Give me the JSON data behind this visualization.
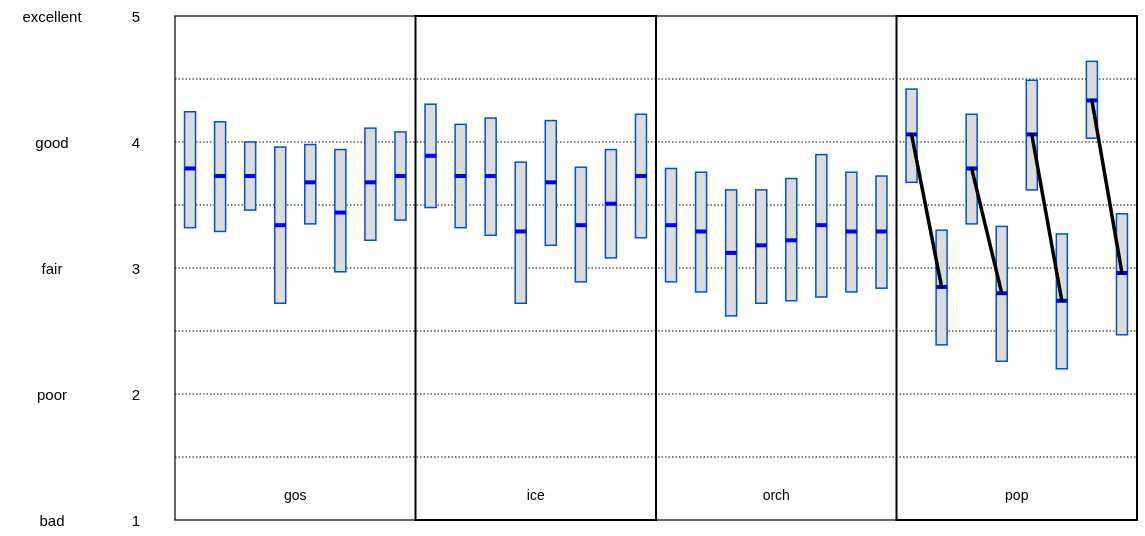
{
  "chart_data": {
    "type": "box",
    "categories": [
      null,
      null,
      null,
      null,
      null,
      null,
      null,
      null,
      null,
      null,
      null,
      null,
      null,
      null,
      null,
      null,
      null,
      null,
      null,
      null,
      null,
      null,
      null,
      null,
      null,
      null,
      null,
      null,
      null,
      null,
      null,
      null
    ],
    "ylim": [
      1,
      5
    ],
    "yticks": [
      1,
      {
        "value": 1.5,
        "label": null
      },
      2,
      {
        "value": 2.5,
        "label": null
      },
      3,
      {
        "value": 3.5,
        "label": null
      },
      4,
      {
        "value": 4.5,
        "label": null
      },
      5
    ],
    "grid": "y",
    "annotations": [
      "gos",
      "ice",
      "orch",
      "pop",
      "excellent",
      "good",
      "fair",
      "poor",
      "bad"
    ],
    "series": [
      {
        "color": "#dcdcdc",
        "boxes": [
          {
            "low": 3.32,
            "q1": 3.32,
            "median": 3.79,
            "q3": 4.24,
            "high": 4.24
          },
          {
            "low": 3.29,
            "q1": 3.29,
            "median": 3.73,
            "q3": 4.16,
            "high": 4.16
          },
          {
            "low": 3.46,
            "q1": 3.46,
            "median": 3.73,
            "q3": 4.0,
            "high": 4.0
          },
          {
            "low": 2.72,
            "q1": 2.72,
            "median": 3.34,
            "q3": 3.96,
            "high": 3.96
          },
          {
            "low": 3.35,
            "q1": 3.35,
            "median": 3.68,
            "q3": 3.98,
            "high": 3.98
          },
          {
            "low": 2.97,
            "q1": 2.97,
            "median": 3.44,
            "q3": 3.94,
            "high": 3.94
          },
          {
            "low": 3.22,
            "q1": 3.22,
            "median": 3.68,
            "q3": 4.11,
            "high": 4.11
          },
          {
            "low": 3.38,
            "q1": 3.38,
            "median": 3.73,
            "q3": 4.08,
            "high": 4.08
          },
          {
            "low": 3.48,
            "q1": 3.48,
            "median": 3.89,
            "q3": 4.3,
            "high": 4.3
          },
          {
            "low": 3.32,
            "q1": 3.32,
            "median": 3.73,
            "q3": 4.14,
            "high": 4.14
          },
          {
            "low": 3.26,
            "q1": 3.26,
            "median": 3.73,
            "q3": 4.19,
            "high": 4.19
          },
          {
            "low": 2.72,
            "q1": 2.72,
            "median": 3.29,
            "q3": 3.84,
            "high": 3.84
          },
          {
            "low": 3.18,
            "q1": 3.18,
            "median": 3.68,
            "q3": 4.17,
            "high": 4.17
          },
          {
            "low": 2.89,
            "q1": 2.89,
            "median": 3.34,
            "q3": 3.8,
            "high": 3.8
          },
          {
            "low": 3.08,
            "q1": 3.08,
            "median": 3.51,
            "q3": 3.94,
            "high": 3.94
          },
          {
            "low": 3.24,
            "q1": 3.24,
            "median": 3.73,
            "q3": 4.22,
            "high": 4.22
          },
          {
            "low": 2.89,
            "q1": 2.89,
            "median": 3.34,
            "q3": 3.79,
            "high": 3.79
          },
          {
            "low": 2.81,
            "q1": 2.81,
            "median": 3.29,
            "q3": 3.76,
            "high": 3.76
          },
          {
            "low": 2.62,
            "q1": 2.62,
            "median": 3.12,
            "q3": 3.62,
            "high": 3.62
          },
          {
            "low": 2.72,
            "q1": 2.72,
            "median": 3.18,
            "q3": 3.62,
            "high": 3.62
          },
          {
            "low": 2.74,
            "q1": 2.74,
            "median": 3.22,
            "q3": 3.71,
            "high": 3.71
          },
          {
            "low": 2.77,
            "q1": 2.77,
            "median": 3.34,
            "q3": 3.9,
            "high": 3.9
          },
          {
            "low": 2.81,
            "q1": 2.81,
            "median": 3.29,
            "q3": 3.76,
            "high": 3.76
          },
          {
            "low": 2.84,
            "q1": 2.84,
            "median": 3.29,
            "q3": 3.73,
            "high": 3.73
          },
          {
            "low": 3.68,
            "q1": 3.68,
            "median": 4.06,
            "q3": 4.42,
            "high": 4.42
          },
          {
            "low": 2.39,
            "q1": 2.39,
            "median": 2.85,
            "q3": 3.3,
            "high": 3.3
          },
          {
            "low": 3.35,
            "q1": 3.35,
            "median": 3.79,
            "q3": 4.22,
            "high": 4.22
          },
          {
            "low": 2.26,
            "q1": 2.26,
            "median": 2.8,
            "q3": 3.33,
            "high": 3.33
          },
          {
            "low": 3.62,
            "q1": 3.62,
            "median": 4.06,
            "q3": 4.49,
            "high": 4.49
          },
          {
            "low": 2.2,
            "q1": 2.2,
            "median": 2.74,
            "q3": 3.27,
            "high": 3.27
          },
          {
            "low": 4.03,
            "q1": 4.03,
            "median": 4.33,
            "q3": 4.64,
            "high": 4.64
          },
          {
            "low": 2.47,
            "q1": 2.47,
            "median": 2.96,
            "q3": 3.43,
            "high": 3.43
          }
        ]
      },
      {
        "type": "line",
        "color": "#000000",
        "values": [
          null,
          null,
          null,
          null,
          null,
          null,
          null,
          null,
          null,
          null,
          null,
          null,
          null,
          null,
          null,
          null,
          null,
          null,
          null,
          null,
          null,
          null,
          null,
          null,
          4.06,
          2.85,
          null,
          null,
          null,
          null,
          null,
          null
        ]
      },
      {
        "type": "line",
        "color": "#000000",
        "values": [
          null,
          null,
          null,
          null,
          null,
          null,
          null,
          null,
          null,
          null,
          null,
          null,
          null,
          null,
          null,
          null,
          null,
          null,
          null,
          null,
          null,
          null,
          null,
          null,
          null,
          null,
          3.79,
          2.8,
          null,
          null,
          null,
          null
        ]
      },
      {
        "type": "line",
        "color": "#000000",
        "values": [
          null,
          null,
          null,
          null,
          null,
          null,
          null,
          null,
          null,
          null,
          null,
          null,
          null,
          null,
          null,
          null,
          null,
          null,
          null,
          null,
          null,
          null,
          null,
          null,
          null,
          null,
          null,
          null,
          4.06,
          2.74,
          null,
          null
        ]
      },
      {
        "type": "line",
        "color": "#000000",
        "values": [
          null,
          null,
          null,
          null,
          null,
          null,
          null,
          null,
          null,
          null,
          null,
          null,
          null,
          null,
          null,
          null,
          null,
          null,
          null,
          null,
          null,
          null,
          null,
          null,
          null,
          null,
          null,
          null,
          null,
          null,
          4.33,
          2.96
        ]
      }
    ]
  }
}
